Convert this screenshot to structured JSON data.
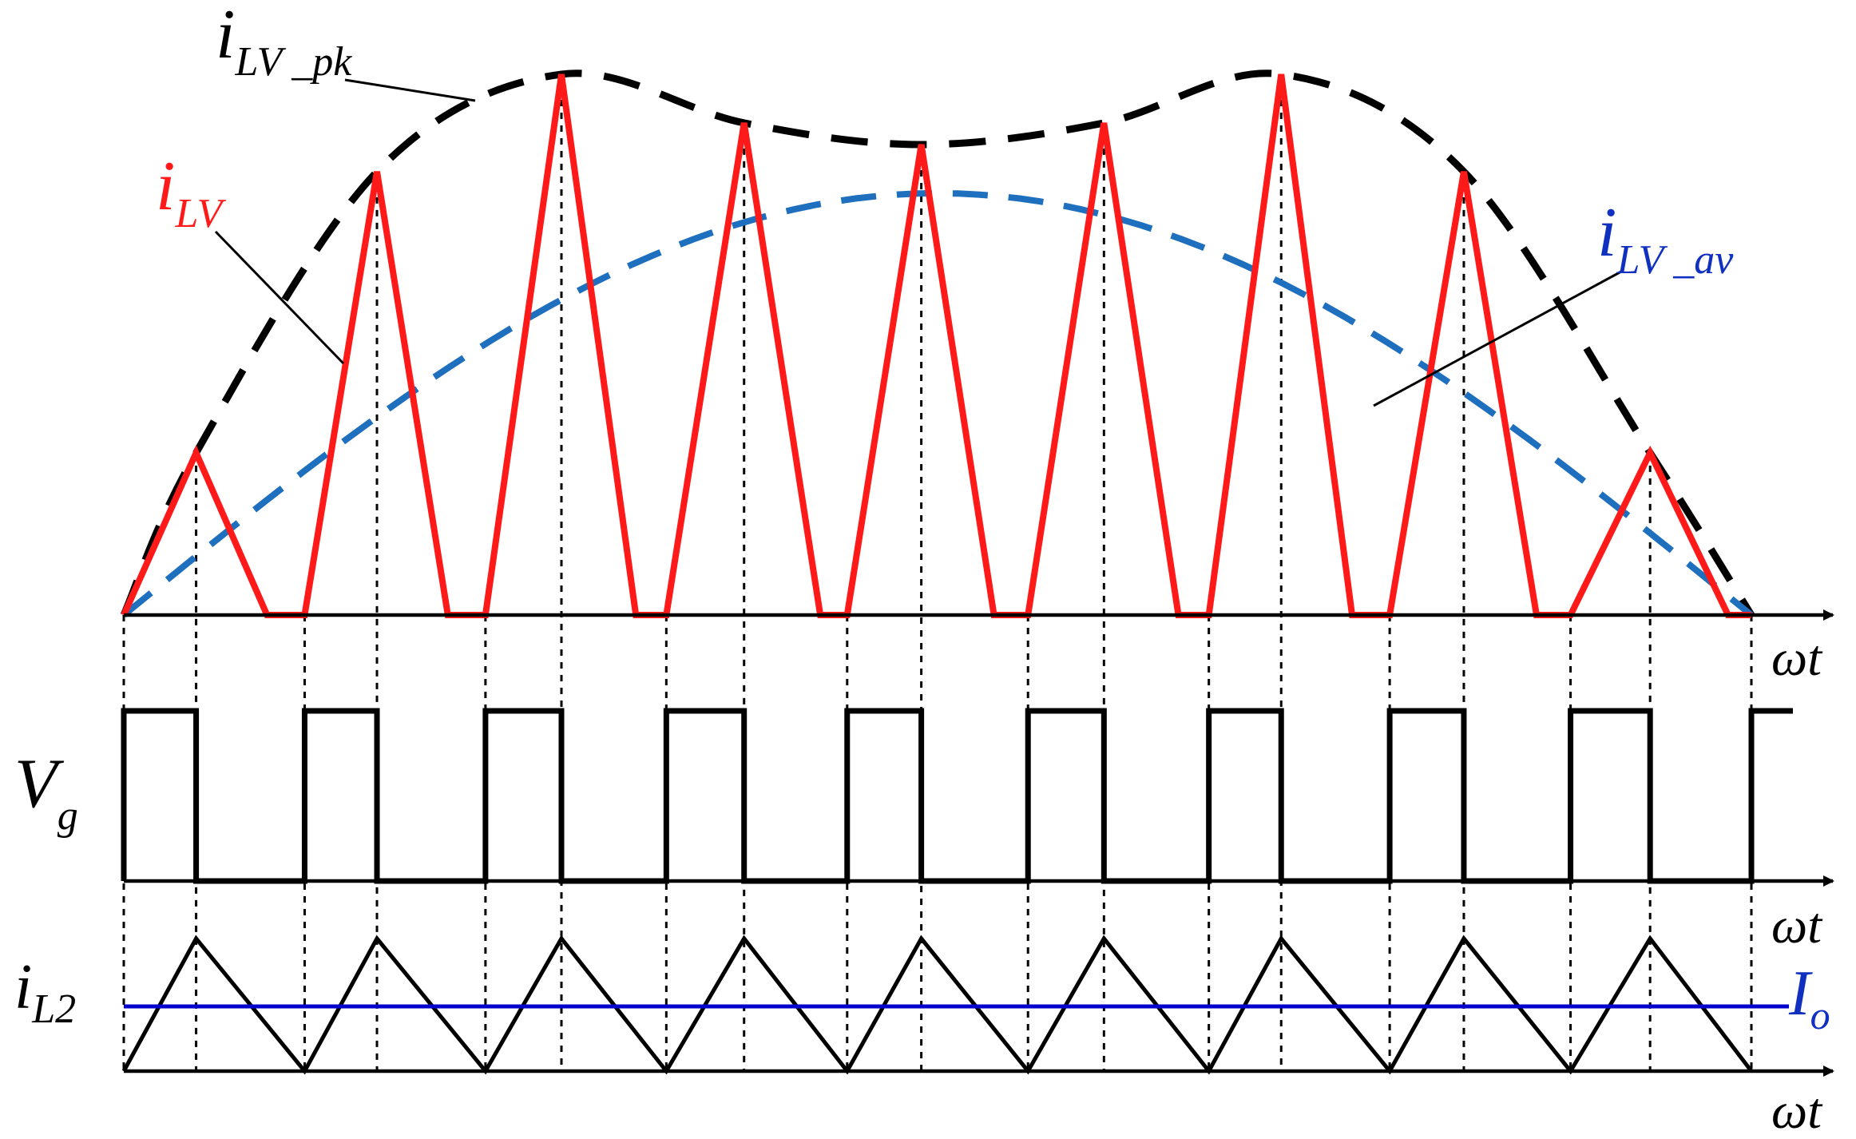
{
  "colors": {
    "i_LV": "#ff1a1a",
    "envelope": "#000000",
    "average": "#1f6fbf",
    "gate": "#000000",
    "i_L2": "#000000",
    "I_o": "#0000cc",
    "label_blue": "#1030c0"
  },
  "labels": {
    "i_LV_pk": {
      "main": "i",
      "sub": "LV _pk"
    },
    "i_LV": {
      "main": "i",
      "sub": "LV"
    },
    "i_LV_av": {
      "main": "i",
      "sub": "LV _av"
    },
    "V_g": {
      "main": "V",
      "sub": "g"
    },
    "i_L2": {
      "main": "i",
      "sub": "L2"
    },
    "I_o": {
      "main": "I",
      "sub": "o"
    },
    "axis_top": "ωt",
    "axis_mid": "ωt",
    "axis_bot": "ωt"
  },
  "chart_data": {
    "type": "line",
    "switching_periods": 9,
    "i_LV": {
      "peaks": [
        0.3,
        0.82,
        1.0,
        0.91,
        0.87,
        0.91,
        1.0,
        0.82,
        0.3
      ],
      "on_fraction": [
        0.4,
        0.4,
        0.42,
        0.43,
        0.41,
        0.42,
        0.4,
        0.41,
        0.44
      ]
    },
    "i_LV_pk_envelope": "double-hump dashed curve through the i_LV peaks",
    "i_LV_av": "dashed sine-like average curve from 0 to 0",
    "V_g": "square gate pulses, high during the rising interval of i_LV",
    "i_L2": "triangular ripple about constant I_o",
    "I_o": "constant level"
  }
}
